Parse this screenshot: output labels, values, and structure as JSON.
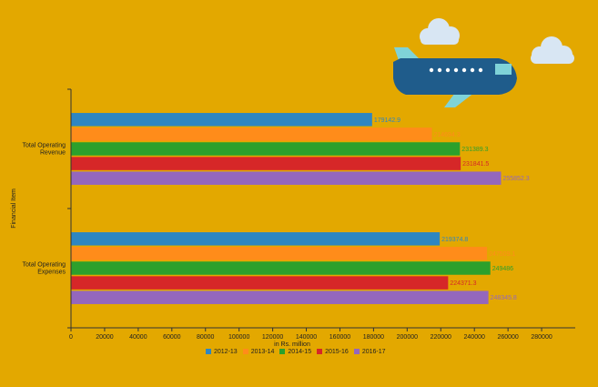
{
  "chart_data": {
    "type": "bar",
    "orientation": "horizontal",
    "categories": [
      "Total Operating Revenue",
      "Total Operating Expenses"
    ],
    "category_lines": [
      [
        "Total Operating",
        "Revenue"
      ],
      [
        "Total Operating",
        "Expenses"
      ]
    ],
    "series": [
      {
        "name": "2012-13",
        "color": "#2E86C1",
        "values": [
          179142.9,
          219374.8
        ],
        "labels": [
          "179142.9",
          "219374.8"
        ]
      },
      {
        "name": "2013-14",
        "color": "#FF8C1A",
        "values": [
          214694.3,
          247509.1
        ],
        "labels": [
          "214694.3",
          "247509.1"
        ]
      },
      {
        "name": "2014-15",
        "color": "#2CA02C",
        "values": [
          231389.3,
          249486
        ],
        "labels": [
          "231389.3",
          "249486"
        ]
      },
      {
        "name": "2015-16",
        "color": "#D62728",
        "values": [
          231841.5,
          224371.3
        ],
        "labels": [
          "231841.5",
          "224371.3"
        ]
      },
      {
        "name": "2016-17",
        "color": "#9467BD",
        "values": [
          255852.3,
          248345.8
        ],
        "labels": [
          "255852.3",
          "248345.8"
        ]
      }
    ],
    "xlabel": "in Rs. million",
    "ylabel": "Financial Item",
    "xlim": [
      0,
      300000
    ],
    "xticks": [
      0,
      20000,
      40000,
      60000,
      80000,
      100000,
      120000,
      140000,
      160000,
      180000,
      200000,
      220000,
      240000,
      260000,
      280000
    ],
    "grid": false,
    "legend_position": "bottom"
  },
  "theme": {
    "background": "#E3A800",
    "axis_color": "#333333",
    "text_color": "#222222",
    "plane_body": "#1F5C8B",
    "plane_wing": "#7FD3D8",
    "cloud": "#D8E6F3"
  }
}
